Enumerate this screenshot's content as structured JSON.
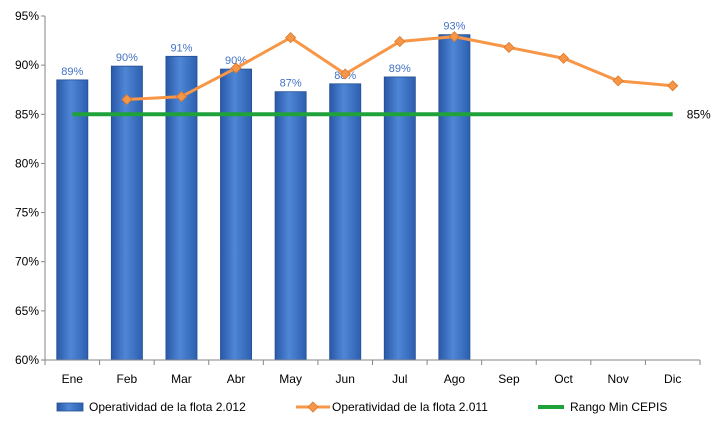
{
  "chart_data": {
    "type": "bar",
    "categories": [
      "Ene",
      "Feb",
      "Mar",
      "Abr",
      "May",
      "Jun",
      "Jul",
      "Ago",
      "Sep",
      "Oct",
      "Nov",
      "Dic"
    ],
    "ylim": [
      60,
      95
    ],
    "yticks": [
      60,
      65,
      70,
      75,
      80,
      85,
      90,
      95
    ],
    "y_unit_suffix": "%",
    "grid": false,
    "legend_position": "bottom",
    "series": [
      {
        "name": "Operatividad de la flota 2.012",
        "kind": "bar",
        "color": "#3a6fc4",
        "values": [
          88.5,
          89.9,
          90.9,
          89.6,
          87.3,
          88.1,
          88.8,
          93.1,
          null,
          null,
          null,
          null
        ],
        "data_labels": [
          "89%",
          "90%",
          "91%",
          "90%",
          "87%",
          "88%",
          "89%",
          "93%",
          "",
          "",
          "",
          ""
        ]
      },
      {
        "name": "Operatividad de la flota 2.011",
        "kind": "line",
        "color": "#f79646",
        "marker": "diamond",
        "values": [
          null,
          86.5,
          86.8,
          89.7,
          92.8,
          89.1,
          92.4,
          92.9,
          91.8,
          90.7,
          88.4,
          87.9
        ]
      },
      {
        "name": "Rango Min CEPIS",
        "kind": "line",
        "color": "#1fa23a",
        "values": [
          85,
          85,
          85,
          85,
          85,
          85,
          85,
          85,
          85,
          85,
          85,
          85
        ],
        "end_label": "85%"
      }
    ]
  }
}
